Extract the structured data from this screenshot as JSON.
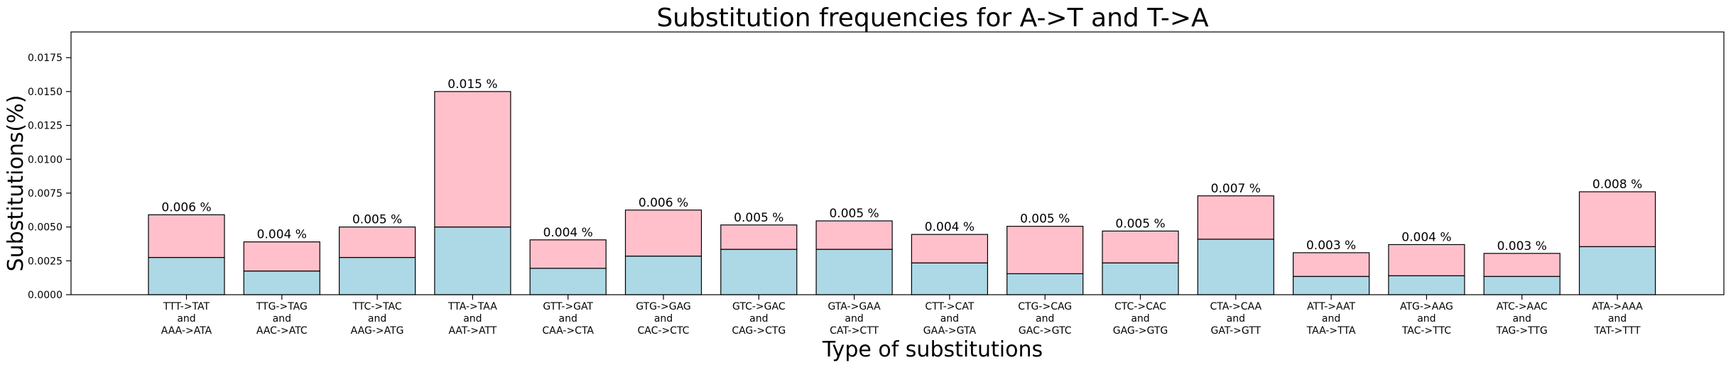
{
  "chart_data": {
    "type": "bar",
    "stacked": true,
    "title": "Substitution frequencies for A->T and T->A",
    "xlabel": "Type of substitutions",
    "ylabel": "Substitutions(%)",
    "ylim": [
      0,
      0.0194
    ],
    "yticks": [
      "0.0000",
      "0.0025",
      "0.0050",
      "0.0075",
      "0.0100",
      "0.0125",
      "0.0150",
      "0.0175"
    ],
    "yticks_values": [
      0,
      0.0025,
      0.005,
      0.0075,
      0.01,
      0.0125,
      0.015,
      0.0175
    ],
    "categories": [
      [
        "TTT->TAT",
        "and",
        "AAA->ATA"
      ],
      [
        "TTG->TAG",
        "and",
        "AAC->ATC"
      ],
      [
        "TTC->TAC",
        "and",
        "AAG->ATG"
      ],
      [
        "TTA->TAA",
        "and",
        "AAT->ATT"
      ],
      [
        "GTT->GAT",
        "and",
        "CAA->CTA"
      ],
      [
        "GTG->GAG",
        "and",
        "CAC->CTC"
      ],
      [
        "GTC->GAC",
        "and",
        "CAG->CTG"
      ],
      [
        "GTA->GAA",
        "and",
        "CAT->CTT"
      ],
      [
        "CTT->CAT",
        "and",
        "GAA->GTA"
      ],
      [
        "CTG->CAG",
        "and",
        "GAC->GTC"
      ],
      [
        "CTC->CAC",
        "and",
        "GAG->GTG"
      ],
      [
        "CTA->CAA",
        "and",
        "GAT->GTT"
      ],
      [
        "ATT->AAT",
        "and",
        "TAA->TTA"
      ],
      [
        "ATG->AAG",
        "and",
        "TAC->TTC"
      ],
      [
        "ATC->AAC",
        "and",
        "TAG->TTG"
      ],
      [
        "ATA->AAA",
        "and",
        "TAT->TTT"
      ]
    ],
    "series": [
      {
        "color": "#add8e6",
        "values": [
          0.00275,
          0.00175,
          0.00275,
          0.005,
          0.00195,
          0.00285,
          0.00335,
          0.00335,
          0.00235,
          0.00155,
          0.00235,
          0.0041,
          0.00135,
          0.0014,
          0.00135,
          0.00355
        ]
      },
      {
        "color": "#ffc0cb",
        "values": [
          0.00315,
          0.00215,
          0.00225,
          0.01,
          0.0021,
          0.0034,
          0.0018,
          0.0021,
          0.0021,
          0.0035,
          0.00235,
          0.0032,
          0.00175,
          0.0023,
          0.0017,
          0.00405
        ]
      }
    ],
    "totals_labels": [
      "0.006 %",
      "0.004 %",
      "0.005 %",
      "0.015 %",
      "0.004 %",
      "0.006 %",
      "0.005 %",
      "0.005 %",
      "0.004 %",
      "0.005 %",
      "0.005 %",
      "0.007 %",
      "0.003 %",
      "0.004 %",
      "0.003 %",
      "0.008 %"
    ],
    "grid": false,
    "legend": "none"
  }
}
